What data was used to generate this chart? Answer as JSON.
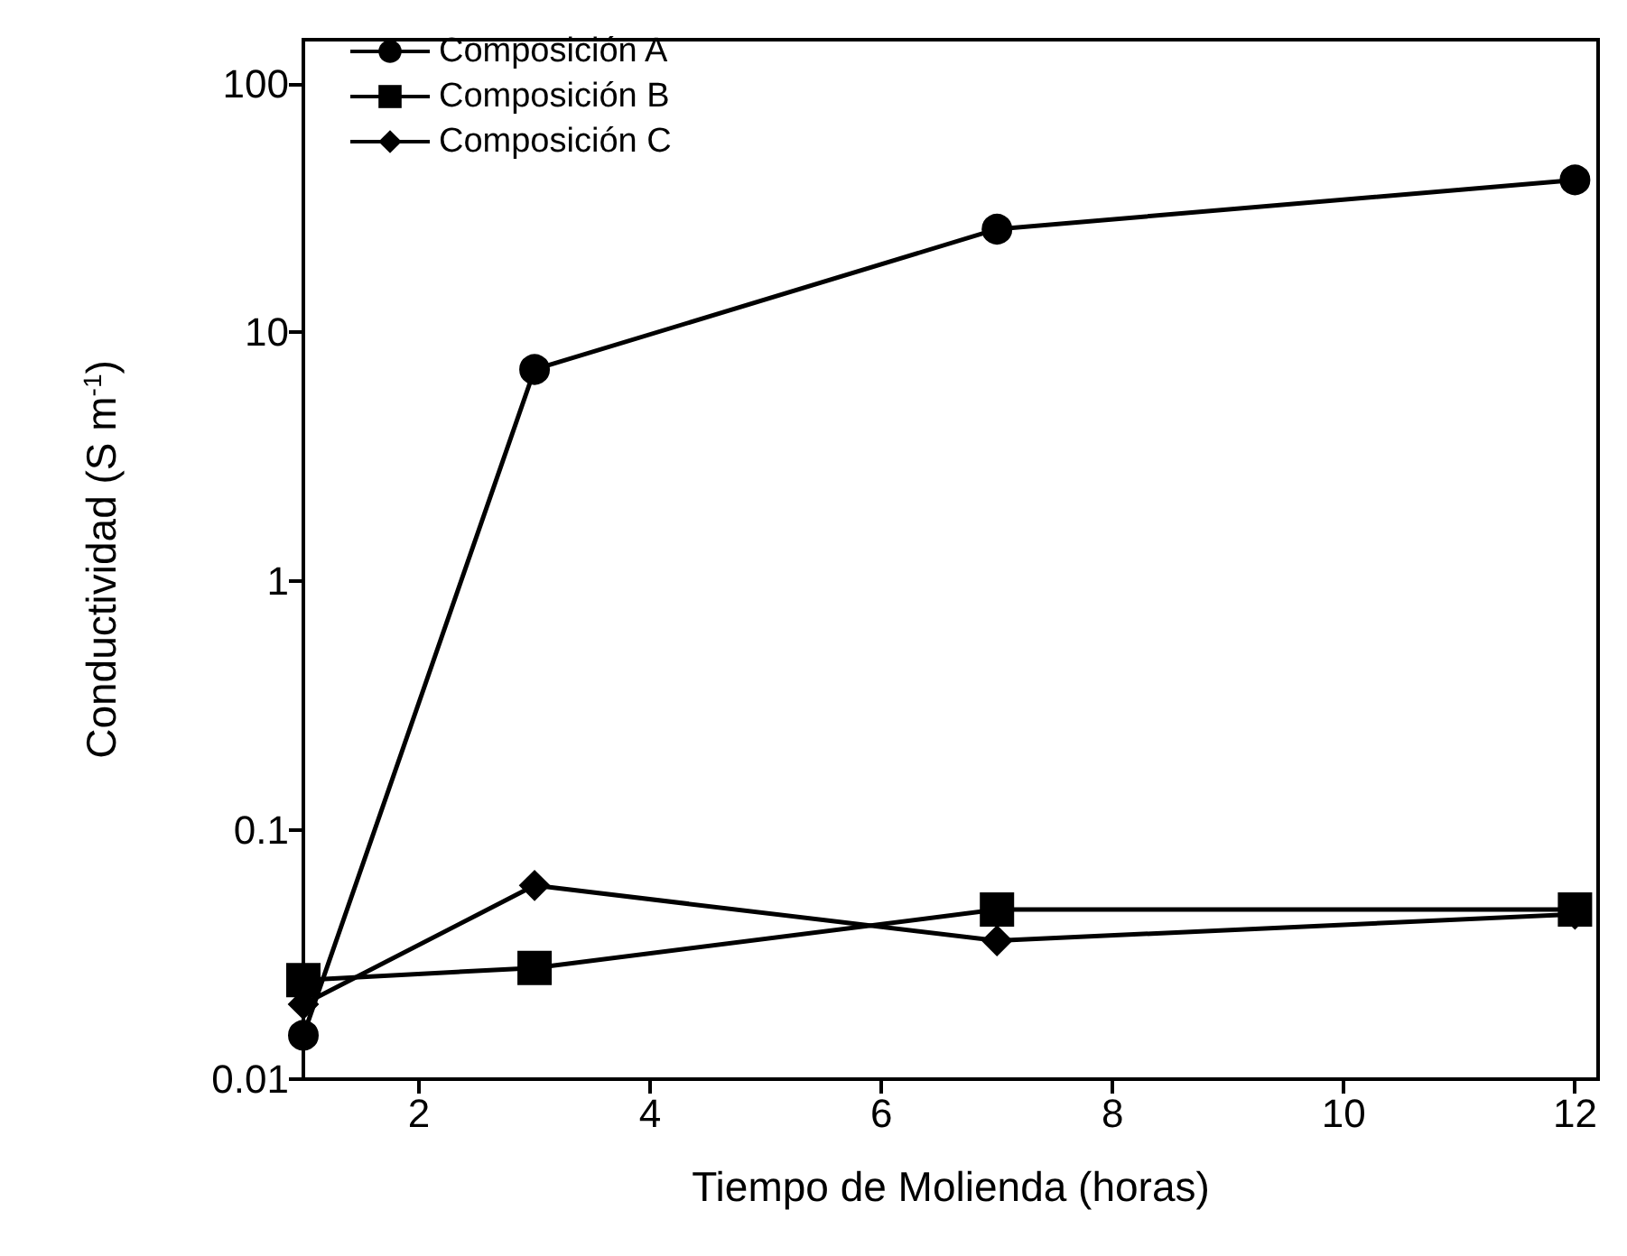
{
  "chart_data": {
    "type": "line",
    "xlabel": "Tiempo de Molienda (horas)",
    "ylabel": "Conductividad (S m$^{-1}$)",
    "x": [
      1,
      3,
      7,
      12
    ],
    "series": [
      {
        "name": "Composición A",
        "color": "#000000",
        "marker": "circle",
        "values": [
          0.015,
          7.1,
          26,
          41
        ]
      },
      {
        "name": "Composición B",
        "color": "#000000",
        "marker": "square",
        "values": [
          0.025,
          0.028,
          0.048,
          0.048
        ]
      },
      {
        "name": "Composición C",
        "color": "#000000",
        "marker": "diamond",
        "values": [
          0.02,
          0.06,
          0.036,
          0.046
        ]
      }
    ],
    "xlim": [
      1,
      12.2
    ],
    "xticks": [
      2,
      4,
      6,
      8,
      10,
      12
    ],
    "ylim": [
      0.01,
      150
    ],
    "yticks": [
      0.01,
      0.1,
      1,
      10,
      100
    ],
    "log": "y",
    "grid": false,
    "legend": "top left",
    "line_style": "solid"
  }
}
